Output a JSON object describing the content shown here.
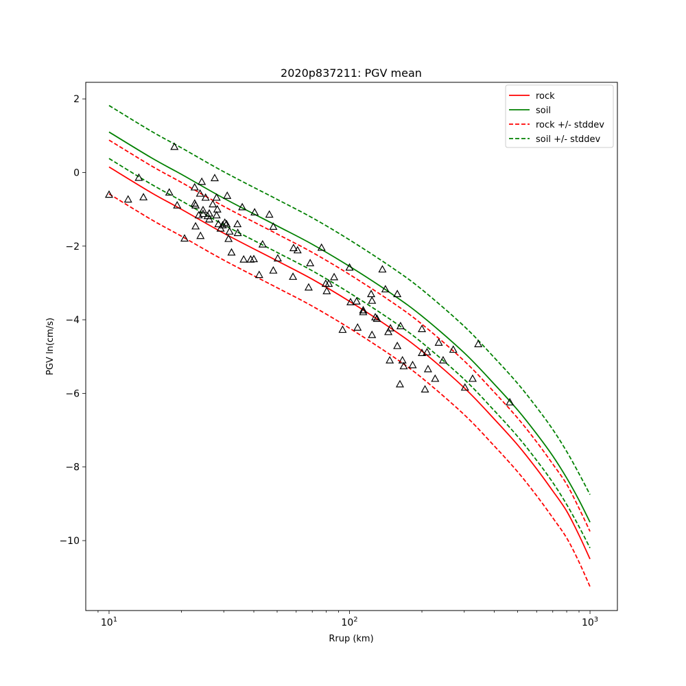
{
  "chart_data": {
    "type": "scatter",
    "title": "2020p837211: PGV mean",
    "xlabel": "Rrup (km)",
    "ylabel": "PGV ln(cm/s)",
    "xscale": "log",
    "xlim": [
      8.0,
      1300
    ],
    "ylim": [
      -11.9,
      2.45
    ],
    "xticks": [
      {
        "value": 10,
        "base": "10",
        "exp": "1"
      },
      {
        "value": 100,
        "base": "10",
        "exp": "2"
      },
      {
        "value": 1000,
        "base": "10",
        "exp": "3"
      }
    ],
    "yticks": [
      {
        "value": 2,
        "label": "2"
      },
      {
        "value": 0,
        "label": "0"
      },
      {
        "value": -2,
        "label": "−2"
      },
      {
        "value": -4,
        "label": "−4"
      },
      {
        "value": -6,
        "label": "−6"
      },
      {
        "value": -8,
        "label": "−8"
      },
      {
        "value": -10,
        "label": "−10"
      }
    ],
    "legend_position": "top-right",
    "series": [
      {
        "name": "rock",
        "style": "solid",
        "color": "#ff0000",
        "x": [
          10,
          15,
          20,
          30,
          50,
          70,
          100,
          150,
          200,
          300,
          400,
          500,
          600,
          700,
          800,
          900,
          1000
        ],
        "y": [
          0.15,
          -0.55,
          -1.0,
          -1.65,
          -2.4,
          -2.9,
          -3.5,
          -4.25,
          -4.85,
          -5.85,
          -6.7,
          -7.4,
          -8.05,
          -8.65,
          -9.2,
          -9.85,
          -10.5
        ]
      },
      {
        "name": "soil",
        "style": "solid",
        "color": "#008000",
        "x": [
          10,
          15,
          20,
          30,
          50,
          70,
          100,
          150,
          200,
          300,
          400,
          500,
          600,
          700,
          800,
          900,
          1000
        ],
        "y": [
          1.1,
          0.4,
          -0.05,
          -0.7,
          -1.45,
          -1.95,
          -2.55,
          -3.3,
          -3.9,
          -4.9,
          -5.75,
          -6.45,
          -7.1,
          -7.7,
          -8.3,
          -8.9,
          -9.5
        ]
      },
      {
        "name": "rock +/- stddev",
        "style": "dashed",
        "color": "#ff0000",
        "x": [
          10,
          15,
          20,
          30,
          50,
          70,
          100,
          150,
          200,
          300,
          400,
          500,
          600,
          700,
          800,
          900,
          1000
        ],
        "y": [
          0.88,
          0.18,
          -0.27,
          -0.92,
          -1.67,
          -2.17,
          -2.77,
          -3.52,
          -4.12,
          -5.12,
          -5.97,
          -6.67,
          -7.32,
          -7.92,
          -8.47,
          -9.12,
          -9.75
        ]
      },
      {
        "name": "rock +/- stddev",
        "style": "dashed",
        "color": "#ff0000",
        "legend": false,
        "x": [
          10,
          15,
          20,
          30,
          50,
          70,
          100,
          150,
          200,
          300,
          400,
          500,
          600,
          700,
          800,
          900,
          1000
        ],
        "y": [
          -0.58,
          -1.28,
          -1.73,
          -2.38,
          -3.13,
          -3.63,
          -4.23,
          -4.98,
          -5.58,
          -6.58,
          -7.43,
          -8.13,
          -8.78,
          -9.38,
          -9.93,
          -10.58,
          -11.25
        ]
      },
      {
        "name": "soil +/- stddev",
        "style": "dashed",
        "color": "#008000",
        "x": [
          10,
          15,
          20,
          30,
          50,
          70,
          100,
          150,
          200,
          300,
          400,
          500,
          600,
          700,
          800,
          900,
          1000
        ],
        "y": [
          1.82,
          1.12,
          0.67,
          0.02,
          -0.73,
          -1.23,
          -1.83,
          -2.58,
          -3.18,
          -4.18,
          -5.03,
          -5.73,
          -6.38,
          -6.98,
          -7.58,
          -8.18,
          -8.75
        ]
      },
      {
        "name": "soil +/- stddev",
        "style": "dashed",
        "color": "#008000",
        "legend": false,
        "x": [
          10,
          15,
          20,
          30,
          50,
          70,
          100,
          150,
          200,
          300,
          400,
          500,
          600,
          700,
          800,
          900,
          1000
        ],
        "y": [
          0.38,
          -0.32,
          -0.77,
          -1.42,
          -2.17,
          -2.67,
          -3.27,
          -4.02,
          -4.62,
          -5.62,
          -6.47,
          -7.17,
          -7.82,
          -8.42,
          -9.02,
          -9.62,
          -10.2
        ]
      }
    ],
    "observations": {
      "marker": "triangle",
      "color": "#000000",
      "points": [
        [
          10.0,
          -0.6
        ],
        [
          12.0,
          -0.73
        ],
        [
          13.3,
          -0.14
        ],
        [
          13.9,
          -0.67
        ],
        [
          17.8,
          -0.54
        ],
        [
          18.7,
          0.7
        ],
        [
          19.2,
          -0.89
        ],
        [
          20.6,
          -1.79
        ],
        [
          22.7,
          -0.4
        ],
        [
          22.7,
          -0.84
        ],
        [
          22.9,
          -1.46
        ],
        [
          22.9,
          -0.89
        ],
        [
          23.6,
          -1.16
        ],
        [
          23.9,
          -0.57
        ],
        [
          24.0,
          -1.72
        ],
        [
          24.3,
          -0.25
        ],
        [
          24.6,
          -1.02
        ],
        [
          24.6,
          -1.12
        ],
        [
          25.2,
          -0.68
        ],
        [
          25.7,
          -1.18
        ],
        [
          26.1,
          -1.27
        ],
        [
          26.1,
          -1.11
        ],
        [
          27.0,
          -0.86
        ],
        [
          27.5,
          -0.15
        ],
        [
          28.0,
          -1.16
        ],
        [
          28.0,
          -0.68
        ],
        [
          28.2,
          -1.0
        ],
        [
          28.5,
          -1.4
        ],
        [
          29.1,
          -1.52
        ],
        [
          29.7,
          -1.43
        ],
        [
          30.3,
          -1.36
        ],
        [
          30.8,
          -1.4
        ],
        [
          31.0,
          -0.63
        ],
        [
          31.4,
          -1.8
        ],
        [
          31.7,
          -1.6
        ],
        [
          32.3,
          -2.17
        ],
        [
          34.2,
          -1.4
        ],
        [
          34.3,
          -1.64
        ],
        [
          35.8,
          -0.94
        ],
        [
          36.3,
          -2.36
        ],
        [
          38.8,
          -2.36
        ],
        [
          40.0,
          -2.35
        ],
        [
          40.3,
          -1.08
        ],
        [
          42.1,
          -2.78
        ],
        [
          43.5,
          -1.95
        ],
        [
          46.4,
          -1.14
        ],
        [
          48.2,
          -1.47
        ],
        [
          48.2,
          -2.66
        ],
        [
          50.3,
          -2.33
        ],
        [
          58.2,
          -2.83
        ],
        [
          58.5,
          -2.05
        ],
        [
          60.8,
          -2.11
        ],
        [
          67.6,
          -3.12
        ],
        [
          68.6,
          -2.46
        ],
        [
          76.5,
          -2.04
        ],
        [
          79.6,
          -3.02
        ],
        [
          80.4,
          -3.22
        ],
        [
          82.0,
          -3.02
        ],
        [
          86.3,
          -2.84
        ],
        [
          93.6,
          -4.27
        ],
        [
          100.0,
          -2.58
        ],
        [
          101.0,
          -3.52
        ],
        [
          107.0,
          -3.5
        ],
        [
          108.0,
          -4.21
        ],
        [
          114.0,
          -3.79
        ],
        [
          114.0,
          -3.74
        ],
        [
          123.0,
          -3.3
        ],
        [
          124.0,
          -3.48
        ],
        [
          124.0,
          -4.41
        ],
        [
          128.0,
          -3.93
        ],
        [
          130.0,
          -3.97
        ],
        [
          137.0,
          -2.63
        ],
        [
          141.0,
          -3.17
        ],
        [
          145.0,
          -4.33
        ],
        [
          147.0,
          -5.1
        ],
        [
          148.0,
          -4.23
        ],
        [
          158.0,
          -3.3
        ],
        [
          158.0,
          -4.71
        ],
        [
          162.0,
          -5.75
        ],
        [
          163.0,
          -4.17
        ],
        [
          166.0,
          -5.1
        ],
        [
          168.0,
          -5.26
        ],
        [
          183.0,
          -5.23
        ],
        [
          200.0,
          -4.9
        ],
        [
          200.0,
          -4.25
        ],
        [
          206.0,
          -5.89
        ],
        [
          210.0,
          -4.88
        ],
        [
          212.0,
          -5.34
        ],
        [
          227.0,
          -5.6
        ],
        [
          235.0,
          -4.62
        ],
        [
          245.0,
          -5.1
        ],
        [
          270.0,
          -4.81
        ],
        [
          302.0,
          -5.84
        ],
        [
          325.0,
          -5.6
        ],
        [
          343.0,
          -4.66
        ],
        [
          464.0,
          -6.24
        ]
      ]
    }
  }
}
